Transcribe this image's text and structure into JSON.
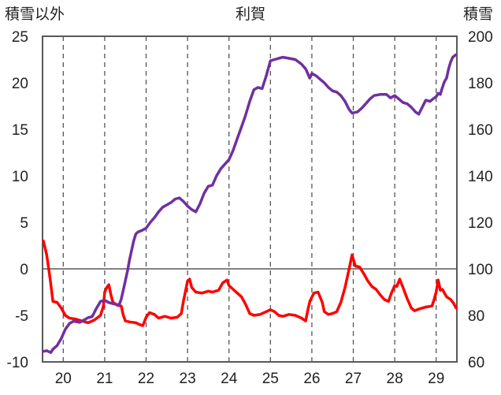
{
  "chart_data": {
    "type": "line",
    "title": "利賀",
    "left_axis_label": "積雪以外",
    "right_axis_label": "積雪",
    "x_ticks": [
      "20",
      "21",
      "22",
      "23",
      "24",
      "25",
      "26",
      "27",
      "28",
      "29"
    ],
    "x_range": [
      19.5,
      29.5
    ],
    "y_left": {
      "range": [
        -10,
        25
      ],
      "ticks": [
        "25",
        "20",
        "15",
        "10",
        "5",
        "0",
        "-5",
        "-10"
      ]
    },
    "y_right": {
      "range": [
        60,
        200
      ],
      "ticks": [
        "200",
        "180",
        "160",
        "140",
        "120",
        "100",
        "80",
        "60"
      ]
    },
    "grid": {
      "vertical": "dashed",
      "horizontal": "none"
    },
    "series": [
      {
        "axis": "left",
        "color": "#ff0000",
        "points": [
          [
            19.52,
            3.0
          ],
          [
            19.6,
            1.5
          ],
          [
            19.68,
            -1.0
          ],
          [
            19.75,
            -3.5
          ],
          [
            19.85,
            -3.6
          ],
          [
            19.95,
            -4.2
          ],
          [
            20.05,
            -5.0
          ],
          [
            20.15,
            -5.3
          ],
          [
            20.3,
            -5.4
          ],
          [
            20.45,
            -5.6
          ],
          [
            20.6,
            -5.8
          ],
          [
            20.75,
            -5.5
          ],
          [
            20.9,
            -5.0
          ],
          [
            20.97,
            -4.0
          ],
          [
            21.0,
            -2.5
          ],
          [
            21.05,
            -2.0
          ],
          [
            21.1,
            -1.7
          ],
          [
            21.15,
            -2.8
          ],
          [
            21.2,
            -3.6
          ],
          [
            21.3,
            -3.9
          ],
          [
            21.4,
            -4.0
          ],
          [
            21.45,
            -5.0
          ],
          [
            21.5,
            -5.6
          ],
          [
            21.6,
            -5.7
          ],
          [
            21.75,
            -5.8
          ],
          [
            21.85,
            -6.0
          ],
          [
            21.92,
            -6.1
          ],
          [
            22.0,
            -5.2
          ],
          [
            22.08,
            -4.7
          ],
          [
            22.2,
            -4.9
          ],
          [
            22.3,
            -5.3
          ],
          [
            22.45,
            -5.1
          ],
          [
            22.6,
            -5.3
          ],
          [
            22.75,
            -5.2
          ],
          [
            22.85,
            -4.8
          ],
          [
            22.9,
            -3.5
          ],
          [
            22.95,
            -2.4
          ],
          [
            23.0,
            -1.3
          ],
          [
            23.05,
            -1.1
          ],
          [
            23.1,
            -2.0
          ],
          [
            23.2,
            -2.5
          ],
          [
            23.35,
            -2.6
          ],
          [
            23.5,
            -2.4
          ],
          [
            23.6,
            -2.5
          ],
          [
            23.75,
            -2.3
          ],
          [
            23.85,
            -1.5
          ],
          [
            23.95,
            -1.2
          ],
          [
            24.0,
            -1.8
          ],
          [
            24.1,
            -2.2
          ],
          [
            24.2,
            -2.6
          ],
          [
            24.3,
            -3.0
          ],
          [
            24.4,
            -3.8
          ],
          [
            24.5,
            -4.8
          ],
          [
            24.6,
            -5.0
          ],
          [
            24.75,
            -4.9
          ],
          [
            24.9,
            -4.6
          ],
          [
            25.0,
            -4.4
          ],
          [
            25.1,
            -4.6
          ],
          [
            25.2,
            -5.0
          ],
          [
            25.3,
            -5.1
          ],
          [
            25.45,
            -4.9
          ],
          [
            25.6,
            -5.0
          ],
          [
            25.75,
            -5.3
          ],
          [
            25.85,
            -5.6
          ],
          [
            25.9,
            -4.5
          ],
          [
            25.95,
            -3.5
          ],
          [
            26.05,
            -2.6
          ],
          [
            26.15,
            -2.5
          ],
          [
            26.25,
            -3.6
          ],
          [
            26.3,
            -4.6
          ],
          [
            26.4,
            -4.9
          ],
          [
            26.5,
            -4.8
          ],
          [
            26.6,
            -4.6
          ],
          [
            26.7,
            -3.6
          ],
          [
            26.8,
            -2.0
          ],
          [
            26.9,
            0.0
          ],
          [
            26.97,
            1.5
          ],
          [
            27.05,
            0.3
          ],
          [
            27.15,
            0.2
          ],
          [
            27.25,
            -0.5
          ],
          [
            27.35,
            -1.3
          ],
          [
            27.45,
            -1.9
          ],
          [
            27.55,
            -2.2
          ],
          [
            27.65,
            -2.8
          ],
          [
            27.75,
            -3.3
          ],
          [
            27.85,
            -3.5
          ],
          [
            27.92,
            -2.6
          ],
          [
            28.0,
            -1.8
          ],
          [
            28.05,
            -1.9
          ],
          [
            28.12,
            -1.1
          ],
          [
            28.2,
            -2.0
          ],
          [
            28.3,
            -3.2
          ],
          [
            28.4,
            -4.2
          ],
          [
            28.48,
            -4.5
          ],
          [
            28.6,
            -4.3
          ],
          [
            28.75,
            -4.1
          ],
          [
            28.9,
            -4.0
          ],
          [
            28.95,
            -3.3
          ],
          [
            29.0,
            -2.5
          ],
          [
            29.05,
            -1.2
          ],
          [
            29.1,
            -2.3
          ],
          [
            29.15,
            -2.2
          ],
          [
            29.25,
            -3.0
          ],
          [
            29.35,
            -3.3
          ],
          [
            29.42,
            -3.7
          ],
          [
            29.48,
            -4.2
          ]
        ]
      },
      {
        "axis": "right",
        "color": "#7030a0",
        "points": [
          [
            19.52,
            64.5
          ],
          [
            19.6,
            64.8
          ],
          [
            19.7,
            64.0
          ],
          [
            19.75,
            65.5
          ],
          [
            19.85,
            67.0
          ],
          [
            19.95,
            70.0
          ],
          [
            20.05,
            74.0
          ],
          [
            20.15,
            76.5
          ],
          [
            20.25,
            77.5
          ],
          [
            20.4,
            77.0
          ],
          [
            20.5,
            78.0
          ],
          [
            20.6,
            79.0
          ],
          [
            20.7,
            79.5
          ],
          [
            20.8,
            83.0
          ],
          [
            20.9,
            86.0
          ],
          [
            21.0,
            86.5
          ],
          [
            21.1,
            85.5
          ],
          [
            21.25,
            84.8
          ],
          [
            21.35,
            84.5
          ],
          [
            21.4,
            87.0
          ],
          [
            21.45,
            91.0
          ],
          [
            21.5,
            95.0
          ],
          [
            21.55,
            99.0
          ],
          [
            21.6,
            104.0
          ],
          [
            21.65,
            108.0
          ],
          [
            21.7,
            112.0
          ],
          [
            21.75,
            115.0
          ],
          [
            21.8,
            115.8
          ],
          [
            21.9,
            116.5
          ],
          [
            22.0,
            117.5
          ],
          [
            22.1,
            120.0
          ],
          [
            22.2,
            122.0
          ],
          [
            22.3,
            124.5
          ],
          [
            22.4,
            126.5
          ],
          [
            22.5,
            127.5
          ],
          [
            22.6,
            128.5
          ],
          [
            22.7,
            130.0
          ],
          [
            22.8,
            130.5
          ],
          [
            22.9,
            129.0
          ],
          [
            23.0,
            127.0
          ],
          [
            23.1,
            125.5
          ],
          [
            23.2,
            124.5
          ],
          [
            23.3,
            128.0
          ],
          [
            23.4,
            132.5
          ],
          [
            23.5,
            135.5
          ],
          [
            23.6,
            136.0
          ],
          [
            23.7,
            140.0
          ],
          [
            23.8,
            143.0
          ],
          [
            23.9,
            145.0
          ],
          [
            24.0,
            147.0
          ],
          [
            24.1,
            151.0
          ],
          [
            24.2,
            156.0
          ],
          [
            24.3,
            161.0
          ],
          [
            24.4,
            166.0
          ],
          [
            24.5,
            172.0
          ],
          [
            24.6,
            177.0
          ],
          [
            24.7,
            178.0
          ],
          [
            24.8,
            177.5
          ],
          [
            24.9,
            183.0
          ],
          [
            25.0,
            189.5
          ],
          [
            25.1,
            190.0
          ],
          [
            25.2,
            190.5
          ],
          [
            25.3,
            191.0
          ],
          [
            25.45,
            190.5
          ],
          [
            25.6,
            190.0
          ],
          [
            25.75,
            188.0
          ],
          [
            25.85,
            186.0
          ],
          [
            25.95,
            182.0
          ],
          [
            26.0,
            184.0
          ],
          [
            26.1,
            183.0
          ],
          [
            26.2,
            181.5
          ],
          [
            26.3,
            180.0
          ],
          [
            26.4,
            178.0
          ],
          [
            26.5,
            176.5
          ],
          [
            26.6,
            176.0
          ],
          [
            26.7,
            174.5
          ],
          [
            26.8,
            172.0
          ],
          [
            26.9,
            168.5
          ],
          [
            26.97,
            167.0
          ],
          [
            27.1,
            167.5
          ],
          [
            27.2,
            169.0
          ],
          [
            27.3,
            171.0
          ],
          [
            27.4,
            173.0
          ],
          [
            27.5,
            174.5
          ],
          [
            27.65,
            175.0
          ],
          [
            27.8,
            175.0
          ],
          [
            27.9,
            173.5
          ],
          [
            28.0,
            174.5
          ],
          [
            28.1,
            173.0
          ],
          [
            28.2,
            171.5
          ],
          [
            28.3,
            171.0
          ],
          [
            28.4,
            169.5
          ],
          [
            28.5,
            167.5
          ],
          [
            28.58,
            166.5
          ],
          [
            28.65,
            169.0
          ],
          [
            28.75,
            172.5
          ],
          [
            28.85,
            172.0
          ],
          [
            28.92,
            173.0
          ],
          [
            29.0,
            174.0
          ],
          [
            29.05,
            175.5
          ],
          [
            29.1,
            175.0
          ],
          [
            29.15,
            178.0
          ],
          [
            29.2,
            180.5
          ],
          [
            29.25,
            182.0
          ],
          [
            29.3,
            186.0
          ],
          [
            29.35,
            189.0
          ],
          [
            29.4,
            191.0
          ],
          [
            29.47,
            192.0
          ]
        ]
      }
    ]
  }
}
